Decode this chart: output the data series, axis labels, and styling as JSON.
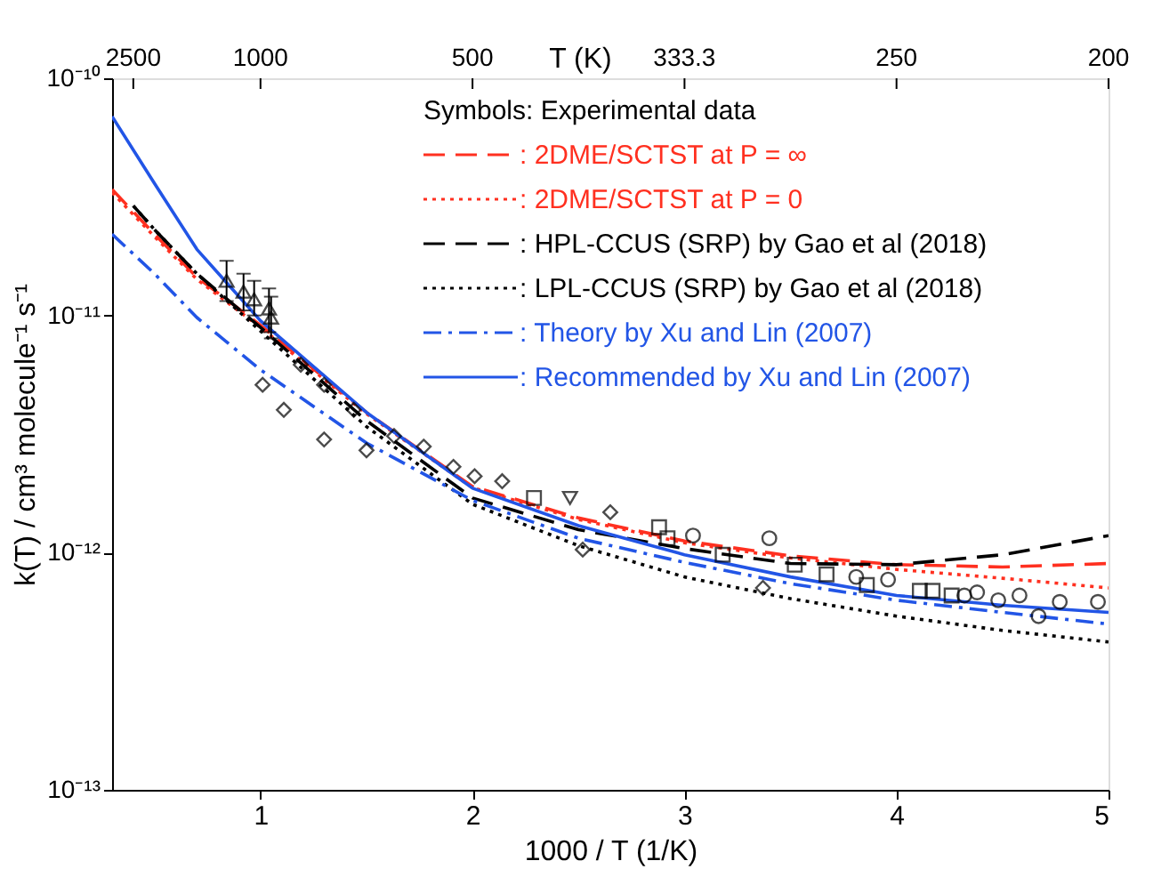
{
  "chart_data": {
    "type": "line",
    "xlabel": "1000 / T (1/K)",
    "ylabel": "k(T) / cm³ molecule⁻¹ s⁻¹",
    "x2label": "T (K)",
    "xlim": [
      0.3,
      5
    ],
    "xticks": [
      1,
      2,
      3,
      4,
      5
    ],
    "ylim": [
      1e-13,
      1e-10
    ],
    "yticks": [
      {
        "value": 1e-13,
        "label": "10⁻¹³"
      },
      {
        "value": 1e-12,
        "label": "10⁻¹²"
      },
      {
        "value": 1e-11,
        "label": "10⁻¹¹"
      },
      {
        "value": 1e-10,
        "label": "10⁻¹⁰"
      }
    ],
    "log": "y",
    "grid": false,
    "legend": "top right",
    "annotations": [
      "Symbols: Experimental data",
      {
        "text": "2500",
        "x": 0.4
      },
      {
        "text": "1000",
        "x": 1
      },
      {
        "text": "500",
        "x": 2
      },
      {
        "text": "333.3",
        "x": 3
      },
      {
        "text": "250",
        "x": 4
      },
      {
        "text": "200",
        "x": 5
      }
    ],
    "series": [
      {
        "name": ": 2DME/SCTST at P = ∞",
        "color": "#ff3020",
        "line_style": "dashed",
        "x": [
          0.3,
          0.5,
          0.7,
          1,
          1.5,
          2,
          2.5,
          3,
          3.5,
          4,
          4.5,
          5
        ],
        "values": [
          3.4e-11,
          2.2e-11,
          1.45e-11,
          9.1e-12,
          3.9e-12,
          1.9e-12,
          1.4e-12,
          1.12e-12,
          9.7e-13,
          8.9e-13,
          8.7e-13,
          9e-13
        ]
      },
      {
        "name": ": 2DME/SCTST at P = 0",
        "color": "#ff3020",
        "line_style": "dotted",
        "x": [
          0.3,
          0.5,
          0.7,
          1,
          1.5,
          2,
          2.5,
          3,
          3.5,
          4,
          4.5,
          5
        ],
        "values": [
          3.3e-11,
          2.15e-11,
          1.42e-11,
          8.9e-12,
          3.85e-12,
          1.88e-12,
          1.38e-12,
          1.1e-12,
          9.5e-13,
          8.5e-13,
          7.8e-13,
          7.1e-13
        ]
      },
      {
        "name": ": HPL-CCUS (SRP) by Gao et al (2018)",
        "color": "#000000",
        "line_style": "dashed",
        "x": [
          0.4,
          0.5,
          0.7,
          1,
          1.5,
          2,
          2.5,
          3,
          3.5,
          4,
          4.5,
          5
        ],
        "values": [
          2.9e-11,
          2.3e-11,
          1.5e-11,
          8.9e-12,
          3.6e-12,
          1.7e-12,
          1.25e-12,
          1.04e-12,
          9e-13,
          8.9e-13,
          9.8e-13,
          1.18e-12
        ]
      },
      {
        "name": ": LPL-CCUS (SRP) by Gao et al (2018)",
        "color": "#000000",
        "line_style": "dotted",
        "x": [
          0.4,
          0.5,
          0.7,
          1,
          1.5,
          2,
          2.5,
          3,
          3.5,
          4,
          4.5,
          5
        ],
        "values": [
          2.9e-11,
          2.3e-11,
          1.5e-11,
          8.6e-12,
          3.4e-12,
          1.6e-12,
          1.07e-12,
          7.9e-13,
          6.4e-13,
          5.4e-13,
          4.7e-13,
          4.2e-13
        ]
      },
      {
        "name": ": Theory by Xu and Lin (2007)",
        "color": "#2255e6",
        "line_style": "dashdot",
        "x": [
          0.3,
          0.5,
          0.7,
          1,
          1.5,
          2,
          2.5,
          3,
          3.5,
          4,
          4.5,
          5
        ],
        "values": [
          2.2e-11,
          1.5e-11,
          9.8e-12,
          5.9e-12,
          2.9e-12,
          1.66e-12,
          1.15e-12,
          9.1e-13,
          7.4e-13,
          6.3e-13,
          5.6e-13,
          5e-13
        ]
      },
      {
        "name": ": Recommended by Xu and Lin (2007)",
        "color": "#2255e6",
        "line_style": "solid",
        "x": [
          0.3,
          0.5,
          0.7,
          1,
          1.5,
          2,
          2.5,
          3,
          3.5,
          4,
          4.5,
          5
        ],
        "values": [
          6.9e-11,
          3.6e-11,
          1.9e-11,
          9.5e-12,
          3.9e-12,
          1.87e-12,
          1.3e-12,
          9.8e-13,
          7.9e-13,
          6.6e-13,
          6e-13,
          5.6e-13
        ]
      },
      {
        "type": "scatter",
        "marker": "triangle",
        "color": "#000000",
        "x": [
          0.84,
          0.92,
          0.97,
          1.04,
          1.05
        ],
        "values": [
          1.4e-11,
          1.26e-11,
          1.17e-11,
          1.07e-11,
          9.8e-12
        ],
        "errors": [
          [
            1.15e-11,
            1.7e-11
          ],
          [
            1.05e-11,
            1.5e-11
          ],
          [
            1e-11,
            1.4e-11
          ],
          [
            8.5e-12,
            1.3e-11
          ],
          [
            8e-12,
            1.2e-11
          ]
        ]
      },
      {
        "type": "scatter",
        "marker": "diamond",
        "color": "#000000",
        "x": [
          1.01,
          1.11,
          1.19,
          1.3,
          1.3,
          1.44,
          1.5,
          1.63,
          1.77,
          1.91,
          2.01,
          2.14,
          2.52,
          2.65,
          3.37
        ],
        "values": [
          5.1e-12,
          4e-12,
          6.2e-12,
          5.1e-12,
          3e-12,
          4e-12,
          2.7e-12,
          3.1e-12,
          2.8e-12,
          2.3e-12,
          2.1e-12,
          2e-12,
          1.03e-12,
          1.48e-12,
          7.1e-13
        ]
      },
      {
        "type": "scatter",
        "marker": "square",
        "color": "#000000",
        "x": [
          2.29,
          2.88,
          2.92,
          3.18,
          3.52,
          3.67,
          3.86,
          4.11,
          4.17,
          4.26
        ],
        "values": [
          1.7e-12,
          1.28e-12,
          1.15e-12,
          9.8e-13,
          8.9e-13,
          8.1e-13,
          7.3e-13,
          6.9e-13,
          6.9e-13,
          6.6e-13
        ]
      },
      {
        "type": "scatter",
        "marker": "circle",
        "color": "#000000",
        "x": [
          3.04,
          3.4,
          3.81,
          3.96,
          4.32,
          4.38,
          4.48,
          4.58,
          4.67,
          4.77,
          4.95
        ],
        "values": [
          1.18e-12,
          1.15e-12,
          7.9e-13,
          7.7e-13,
          6.6e-13,
          6.8e-13,
          6.3e-13,
          6.6e-13,
          5.4e-13,
          6.2e-13,
          6.2e-13
        ]
      },
      {
        "type": "scatter",
        "marker": "triangle-down",
        "color": "#000000",
        "x": [
          2.46
        ],
        "values": [
          1.7e-12
        ]
      }
    ]
  }
}
